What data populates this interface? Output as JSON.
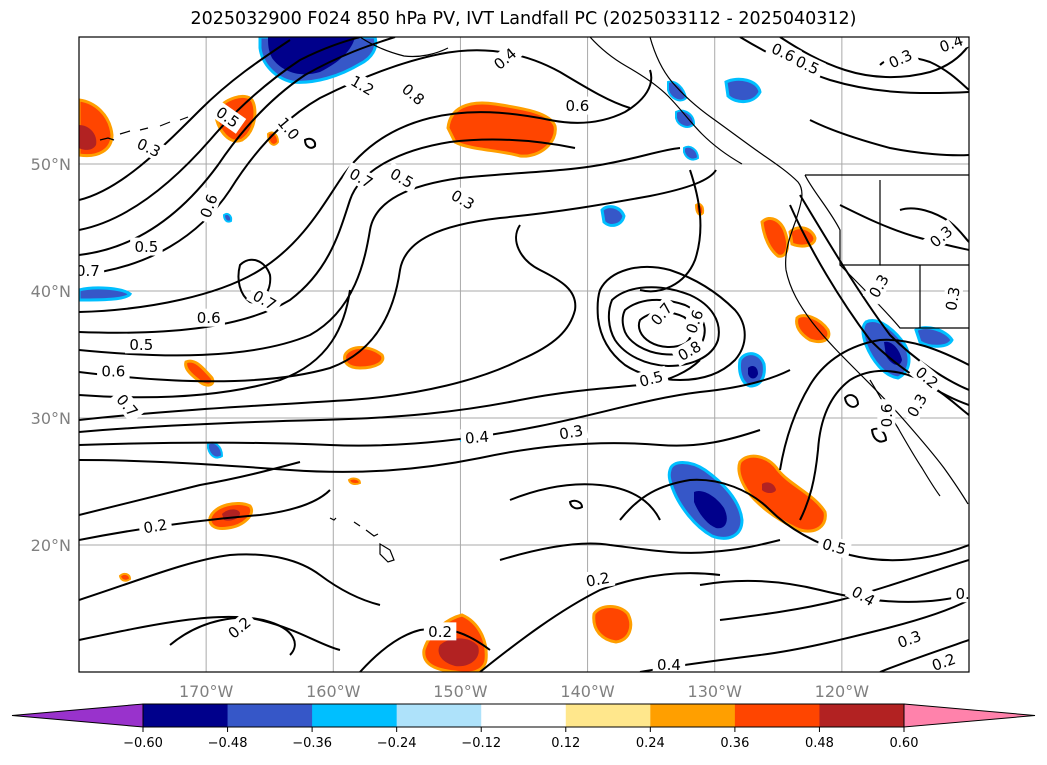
{
  "title": "2025032900 F024 850 hPa PV, IVT Landfall PC (2025033112 - 2025040312)",
  "map": {
    "lon_range": [
      -180,
      -110
    ],
    "lat_range": [
      10,
      60
    ],
    "lat_ticks": [
      {
        "value": 50,
        "label": "50°N"
      },
      {
        "value": 40,
        "label": "40°N"
      },
      {
        "value": 30,
        "label": "30°N"
      },
      {
        "value": 20,
        "label": "20°N"
      }
    ],
    "lon_ticks": [
      {
        "value": -170,
        "label": "170°W"
      },
      {
        "value": -160,
        "label": "160°W"
      },
      {
        "value": -150,
        "label": "150°W"
      },
      {
        "value": -140,
        "label": "140°W"
      },
      {
        "value": -130,
        "label": "130°W"
      },
      {
        "value": -120,
        "label": "120°W"
      }
    ],
    "gridlines": true,
    "tick_label_color": "#808080"
  },
  "colorbar": {
    "ticks": [
      "−0.60",
      "−0.48",
      "−0.36",
      "−0.24",
      "−0.12",
      "0.12",
      "0.24",
      "0.36",
      "0.48",
      "0.60"
    ],
    "under_color": "#9932cc",
    "over_color": "#ff82ab",
    "colors": [
      "#00008b",
      "#3657c8",
      "#00bfff",
      "#aee2fa",
      "#ffffff",
      "#ffe78c",
      "#ff9f00",
      "#ff4500",
      "#b22222"
    ],
    "extend": "both"
  },
  "contour_labels": [
    {
      "text": "0.4",
      "lon": -146.5,
      "lat": 58.3,
      "angle": 40
    },
    {
      "text": "1.2",
      "lon": -157.7,
      "lat": 56.2,
      "angle": -30
    },
    {
      "text": "0.8",
      "lon": -153.7,
      "lat": 55.5,
      "angle": -40
    },
    {
      "text": "0.6",
      "lon": -140.8,
      "lat": 54.6,
      "angle": 0
    },
    {
      "text": "0.6",
      "lon": -124.6,
      "lat": 58.8,
      "angle": -25
    },
    {
      "text": "0.5",
      "lon": -122.7,
      "lat": 57.8,
      "angle": -25
    },
    {
      "text": "0.4",
      "lon": -111.4,
      "lat": 59.5,
      "angle": 20
    },
    {
      "text": "0.3",
      "lon": -115.4,
      "lat": 58.3,
      "angle": 25
    },
    {
      "text": "0.5",
      "lon": -168.3,
      "lat": 53.7,
      "angle": -35
    },
    {
      "text": "0.3",
      "lon": -174.5,
      "lat": 51.3,
      "angle": -25
    },
    {
      "text": "1.0",
      "lon": -163.5,
      "lat": 52.8,
      "angle": -50
    },
    {
      "text": "0.7",
      "lon": -157.8,
      "lat": 48.9,
      "angle": -30
    },
    {
      "text": "0.5",
      "lon": -154.6,
      "lat": 48.9,
      "angle": -30
    },
    {
      "text": "0.3",
      "lon": -149.8,
      "lat": 47.2,
      "angle": -30
    },
    {
      "text": "0.6",
      "lon": -169.8,
      "lat": 46.7,
      "angle": 70
    },
    {
      "text": "0.5",
      "lon": -174.7,
      "lat": 43.5,
      "angle": 0
    },
    {
      "text": "0.7",
      "lon": -179.3,
      "lat": 41.6,
      "angle": 0
    },
    {
      "text": "0.7",
      "lon": -165.4,
      "lat": 39.3,
      "angle": -30
    },
    {
      "text": "0.6",
      "lon": -169.8,
      "lat": 37.9,
      "angle": 0
    },
    {
      "text": "0.5",
      "lon": -175.1,
      "lat": 35.8,
      "angle": 0
    },
    {
      "text": "0.6",
      "lon": -177.3,
      "lat": 33.7,
      "angle": 0
    },
    {
      "text": "0.7",
      "lon": -176.2,
      "lat": 31.0,
      "angle": -50
    },
    {
      "text": "0.7",
      "lon": -134.2,
      "lat": 38.2,
      "angle": 50
    },
    {
      "text": "0.6",
      "lon": -131.6,
      "lat": 37.6,
      "angle": 70
    },
    {
      "text": "0.8",
      "lon": -132.0,
      "lat": 35.3,
      "angle": 30
    },
    {
      "text": "0.5",
      "lon": -135.0,
      "lat": 33.1,
      "angle": 15
    },
    {
      "text": "0.3",
      "lon": -117.1,
      "lat": 40.4,
      "angle": 60
    },
    {
      "text": "0.2",
      "lon": -113.3,
      "lat": 33.2,
      "angle": -40
    },
    {
      "text": "0.3",
      "lon": -114.1,
      "lat": 31.0,
      "angle": 60
    },
    {
      "text": "0.3",
      "lon": -112.2,
      "lat": 44.3,
      "angle": 40
    },
    {
      "text": "0.3",
      "lon": -111.3,
      "lat": 39.4,
      "angle": 80
    },
    {
      "text": "0.6",
      "lon": -116.5,
      "lat": 30.2,
      "angle": 90
    },
    {
      "text": "0.4",
      "lon": -148.7,
      "lat": 28.5,
      "angle": 5
    },
    {
      "text": "0.3",
      "lon": -141.3,
      "lat": 28.9,
      "angle": 10
    },
    {
      "text": "0.2",
      "lon": -174.0,
      "lat": 21.5,
      "angle": 10
    },
    {
      "text": "0.5",
      "lon": -120.6,
      "lat": 19.9,
      "angle": -15
    },
    {
      "text": "0.4",
      "lon": -118.3,
      "lat": 16.0,
      "angle": -30
    },
    {
      "text": "0.2",
      "lon": -139.2,
      "lat": 17.3,
      "angle": 10
    },
    {
      "text": "0.2",
      "lon": -167.4,
      "lat": 13.5,
      "angle": 40
    },
    {
      "text": "0.2",
      "lon": -151.6,
      "lat": 13.2,
      "angle": 0
    },
    {
      "text": "0.3",
      "lon": -114.7,
      "lat": 12.6,
      "angle": 20
    },
    {
      "text": "0.2",
      "lon": -112.0,
      "lat": 10.8,
      "angle": 20
    },
    {
      "text": "0.4",
      "lon": -133.6,
      "lat": 10.6,
      "angle": 0
    },
    {
      "text": "0.",
      "lon": -110.5,
      "lat": 16.2,
      "angle": 0
    }
  ]
}
